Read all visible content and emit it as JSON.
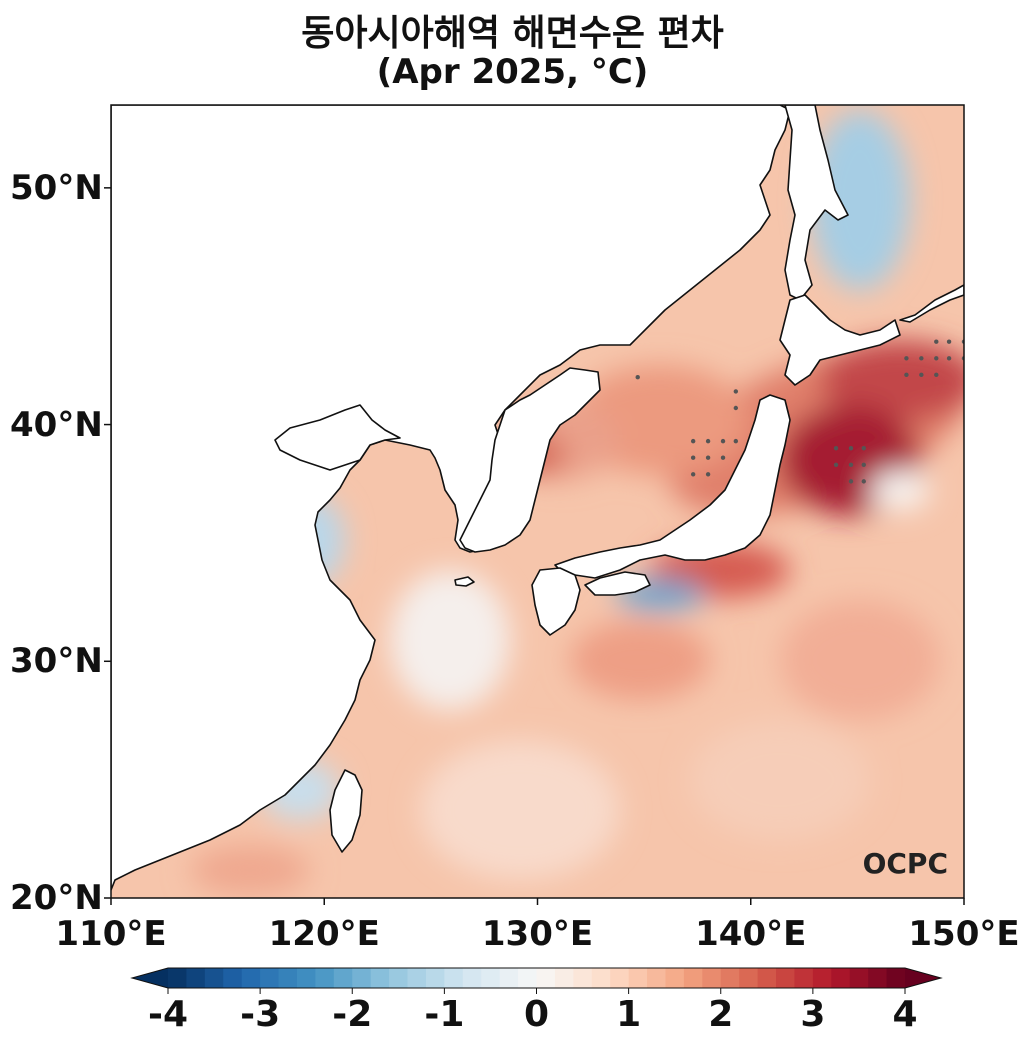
{
  "title_line1": "동아시아해역 해면수온 편차",
  "title_line2": "(Apr 2025, °C)",
  "logo_text": "OCPC",
  "y_ticks": [
    {
      "lat": 50,
      "label": "50°N"
    },
    {
      "lat": 40,
      "label": "40°N"
    },
    {
      "lat": 30,
      "label": "30°N"
    },
    {
      "lat": 20,
      "label": "20°N"
    }
  ],
  "x_ticks": [
    {
      "lon": 110,
      "label": "110°E"
    },
    {
      "lon": 120,
      "label": "120°E"
    },
    {
      "lon": 130,
      "label": "130°E"
    },
    {
      "lon": 140,
      "label": "140°E"
    },
    {
      "lon": 150,
      "label": "150°E"
    }
  ],
  "extent": {
    "lon_min": 110,
    "lon_max": 150,
    "lat_min": 20,
    "lat_max": 53.5
  },
  "colorbar": {
    "min": -4,
    "max": 4,
    "step": 0.2,
    "labels": [
      {
        "value": -4,
        "label": "-4"
      },
      {
        "value": -3,
        "label": "-3"
      },
      {
        "value": -2,
        "label": "-2"
      },
      {
        "value": -1,
        "label": "-1"
      },
      {
        "value": 0,
        "label": "0"
      },
      {
        "value": 1,
        "label": "1"
      },
      {
        "value": 2,
        "label": "2"
      },
      {
        "value": 3,
        "label": "3"
      },
      {
        "value": 4,
        "label": "4"
      }
    ],
    "extend": "both",
    "colormap": "RdBu_r"
  },
  "anomaly_features": [
    {
      "name": "kuroshio-extension-warm-core",
      "lon": 144.5,
      "lat": 38.5,
      "value": 3.6
    },
    {
      "name": "east-of-hokkaido-warm",
      "lon": 147.5,
      "lat": 41.5,
      "value": 2.6
    },
    {
      "name": "east-sea-central-warm",
      "lon": 135.5,
      "lat": 40.0,
      "value": 1.6
    },
    {
      "name": "east-sea-north-warm",
      "lon": 133.0,
      "lat": 41.5,
      "value": 1.2
    },
    {
      "name": "korea-east-coast-warm",
      "lon": 129.8,
      "lat": 38.5,
      "value": 2.0
    },
    {
      "name": "south-of-honshu-warm",
      "lon": 138.5,
      "lat": 34.2,
      "value": 2.2
    },
    {
      "name": "south-of-shikoku-cool",
      "lon": 134.5,
      "lat": 32.6,
      "value": -1.4
    },
    {
      "name": "okhotsk-cool",
      "lon": 146.2,
      "lat": 48.8,
      "value": -1.2
    },
    {
      "name": "east-china-sea-cool",
      "lon": 125.5,
      "lat": 31.0,
      "value": -0.4
    },
    {
      "name": "taiwan-strait-cool",
      "lon": 118.5,
      "lat": 24.5,
      "value": -0.8
    },
    {
      "name": "philippine-sea-warm",
      "lon": 135.0,
      "lat": 29.5,
      "value": 1.3
    },
    {
      "name": "east-pacific-warm",
      "lon": 146.0,
      "lat": 33.0,
      "value": 1.4
    }
  ],
  "significance_dots": [
    [
      144.0,
      39.0
    ],
    [
      144.7,
      39.0
    ],
    [
      145.3,
      39.0
    ],
    [
      144.0,
      38.3
    ],
    [
      144.7,
      38.3
    ],
    [
      145.3,
      38.3
    ],
    [
      144.7,
      37.6
    ],
    [
      145.3,
      37.6
    ],
    [
      147.3,
      42.8
    ],
    [
      148.0,
      42.8
    ],
    [
      148.7,
      42.8
    ],
    [
      149.3,
      42.8
    ],
    [
      150.0,
      42.8
    ],
    [
      147.3,
      42.1
    ],
    [
      148.0,
      42.1
    ],
    [
      148.7,
      42.1
    ],
    [
      148.7,
      43.5
    ],
    [
      149.3,
      43.5
    ],
    [
      150.0,
      43.5
    ],
    [
      137.3,
      39.3
    ],
    [
      138.0,
      39.3
    ],
    [
      138.7,
      39.3
    ],
    [
      139.3,
      39.3
    ],
    [
      137.3,
      38.6
    ],
    [
      138.0,
      38.6
    ],
    [
      138.7,
      38.6
    ],
    [
      137.3,
      37.9
    ],
    [
      138.0,
      37.9
    ],
    [
      139.3,
      40.7
    ],
    [
      139.3,
      41.4
    ],
    [
      134.7,
      42.0
    ]
  ]
}
